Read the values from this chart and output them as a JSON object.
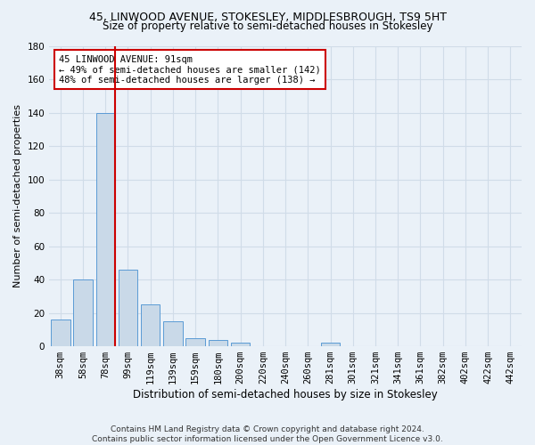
{
  "title": "45, LINWOOD AVENUE, STOKESLEY, MIDDLESBROUGH, TS9 5HT",
  "subtitle": "Size of property relative to semi-detached houses in Stokesley",
  "xlabel": "Distribution of semi-detached houses by size in Stokesley",
  "ylabel": "Number of semi-detached properties",
  "categories": [
    "38sqm",
    "58sqm",
    "78sqm",
    "99sqm",
    "119sqm",
    "139sqm",
    "159sqm",
    "180sqm",
    "200sqm",
    "220sqm",
    "240sqm",
    "260sqm",
    "281sqm",
    "301sqm",
    "321sqm",
    "341sqm",
    "361sqm",
    "382sqm",
    "402sqm",
    "422sqm",
    "442sqm"
  ],
  "values": [
    16,
    40,
    140,
    46,
    25,
    15,
    5,
    4,
    2,
    0,
    0,
    0,
    2,
    0,
    0,
    0,
    0,
    0,
    0,
    0,
    0
  ],
  "bar_color": "#c9d9e8",
  "bar_edge_color": "#5b9bd5",
  "marker_color": "#cc0000",
  "annotation_text": "45 LINWOOD AVENUE: 91sqm\n← 49% of semi-detached houses are smaller (142)\n48% of semi-detached houses are larger (138) →",
  "annotation_box_color": "#ffffff",
  "annotation_box_edge_color": "#cc0000",
  "ylim": [
    0,
    180
  ],
  "yticks": [
    0,
    20,
    40,
    60,
    80,
    100,
    120,
    140,
    160,
    180
  ],
  "grid_color": "#d0dce8",
  "background_color": "#eaf1f8",
  "footnote": "Contains HM Land Registry data © Crown copyright and database right 2024.\nContains public sector information licensed under the Open Government Licence v3.0.",
  "title_fontsize": 9,
  "subtitle_fontsize": 8.5,
  "xlabel_fontsize": 8.5,
  "ylabel_fontsize": 8,
  "tick_fontsize": 7.5,
  "annotation_fontsize": 7.5,
  "footnote_fontsize": 6.5
}
